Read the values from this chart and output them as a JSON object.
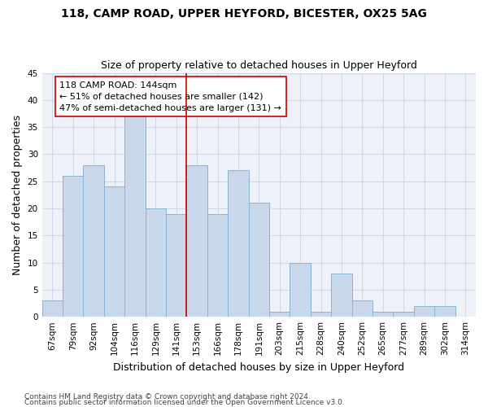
{
  "title": "118, CAMP ROAD, UPPER HEYFORD, BICESTER, OX25 5AG",
  "subtitle": "Size of property relative to detached houses in Upper Heyford",
  "xlabel": "Distribution of detached houses by size in Upper Heyford",
  "ylabel": "Number of detached properties",
  "categories": [
    "67sqm",
    "79sqm",
    "92sqm",
    "104sqm",
    "116sqm",
    "129sqm",
    "141sqm",
    "153sqm",
    "166sqm",
    "178sqm",
    "191sqm",
    "203sqm",
    "215sqm",
    "228sqm",
    "240sqm",
    "252sqm",
    "265sqm",
    "277sqm",
    "289sqm",
    "302sqm",
    "314sqm"
  ],
  "bar_heights": [
    3,
    26,
    28,
    24,
    37,
    20,
    19,
    28,
    19,
    27,
    21,
    1,
    10,
    1,
    8,
    3,
    1,
    1,
    2,
    2,
    0
  ],
  "bar_color": "#c8d8ea",
  "bar_edge_color": "#8ab4d4",
  "highlight_line_color": "#cc0000",
  "highlight_line_index": 6,
  "annotation_text": "118 CAMP ROAD: 144sqm\n← 51% of detached houses are smaller (142)\n47% of semi-detached houses are larger (131) →",
  "annotation_box_color": "#cc0000",
  "ylim": [
    0,
    45
  ],
  "yticks": [
    0,
    5,
    10,
    15,
    20,
    25,
    30,
    35,
    40,
    45
  ],
  "grid_color": "#d0d8e8",
  "background_color": "#eef2f8",
  "footer1": "Contains HM Land Registry data © Crown copyright and database right 2024.",
  "footer2": "Contains public sector information licensed under the Open Government Licence v3.0.",
  "title_fontsize": 10,
  "subtitle_fontsize": 9,
  "axis_label_fontsize": 9,
  "tick_fontsize": 7.5,
  "annotation_fontsize": 8,
  "footer_fontsize": 6.5
}
